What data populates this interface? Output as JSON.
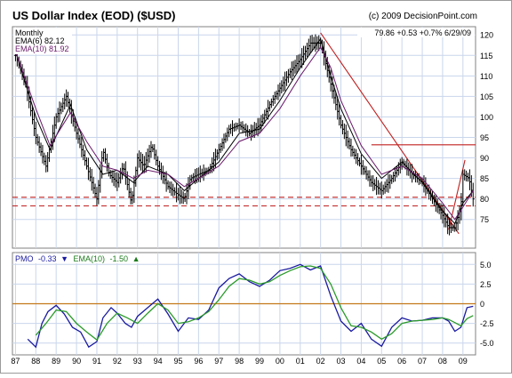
{
  "chart_data": [
    {
      "type": "bar",
      "subtype": "ohlc",
      "title": "US Dollar Index (EOD) ($USD)",
      "copyright": "(c) 2009 DecisionPoint.com",
      "period": "Monthly",
      "quote": "79.86 +0.53 +0.7% 6/29/09",
      "legend": [
        {
          "text": "EMA(6) 82.12",
          "color": "#000000"
        },
        {
          "text": "EMA(10) 81.92",
          "color": "#6a1a6a"
        }
      ],
      "ylim": [
        68,
        122
      ],
      "y_ticks": [
        "75",
        "80",
        "85",
        "90",
        "95",
        "100",
        "105",
        "110",
        "115",
        "120"
      ],
      "x_ticks": [
        "87",
        "88",
        "89",
        "90",
        "91",
        "92",
        "93",
        "94",
        "95",
        "96",
        "97",
        "98",
        "99",
        "00",
        "01",
        "02",
        "03",
        "04",
        "05",
        "06",
        "07",
        "08",
        "09"
      ],
      "x_range": [
        1986.85,
        2009.62
      ],
      "series": [
        {
          "name": "price",
          "x": [
            1987.0,
            1987.5,
            1988.0,
            1988.5,
            1989.0,
            1989.5,
            1990.0,
            1990.5,
            1991.0,
            1991.3,
            1991.6,
            1992.0,
            1992.3,
            1992.7,
            1993.0,
            1993.3,
            1993.7,
            1994.0,
            1994.5,
            1995.0,
            1995.3,
            1995.6,
            1996.0,
            1996.5,
            1997.0,
            1997.5,
            1998.0,
            1998.5,
            1999.0,
            1999.5,
            2000.0,
            2000.5,
            2001.0,
            2001.5,
            2002.0,
            2002.5,
            2003.0,
            2003.5,
            2004.0,
            2004.5,
            2005.0,
            2005.5,
            2006.0,
            2006.5,
            2007.0,
            2007.5,
            2008.0,
            2008.3,
            2008.6,
            2008.9,
            2009.0,
            2009.3,
            2009.5
          ],
          "values": [
            115,
            108,
            95,
            88,
            100,
            105,
            96,
            88,
            80,
            92,
            86,
            84,
            88,
            79,
            90,
            88,
            93,
            88,
            83,
            81,
            80,
            85,
            86,
            87,
            92,
            97,
            98,
            96,
            98,
            103,
            107,
            111,
            114,
            118,
            118,
            108,
            98,
            92,
            88,
            84,
            82,
            85,
            89,
            86,
            84,
            80,
            76,
            73,
            73,
            78,
            86,
            85,
            80
          ]
        },
        {
          "name": "EMA(6)",
          "x": [
            1987.0,
            1988.0,
            1988.7,
            1989.7,
            1990.5,
            1991.3,
            1992.0,
            1992.8,
            1993.5,
            1994.5,
            1995.3,
            1996.0,
            1997.0,
            1998.0,
            1999.0,
            2000.0,
            2001.0,
            2002.0,
            2002.5,
            2003.0,
            2004.0,
            2005.0,
            2006.0,
            2007.0,
            2008.0,
            2008.6,
            2009.0,
            2009.5
          ],
          "values": [
            116,
            100,
            92,
            103,
            92,
            86,
            87,
            84,
            88,
            86,
            82,
            85,
            89,
            96,
            97,
            104,
            112,
            119,
            110,
            102,
            91,
            85,
            89,
            84,
            77,
            74,
            79,
            82
          ]
        },
        {
          "name": "EMA(10)",
          "x": [
            1987.0,
            1988.0,
            1988.7,
            1989.7,
            1990.5,
            1991.3,
            1992.0,
            1992.8,
            1993.5,
            1994.5,
            1995.3,
            1996.0,
            1997.0,
            1998.0,
            1999.0,
            2000.0,
            2001.0,
            2002.0,
            2002.5,
            2003.0,
            2004.0,
            2005.0,
            2006.0,
            2007.0,
            2008.0,
            2008.6,
            2009.0,
            2009.5
          ],
          "values": [
            116,
            102,
            93,
            101,
            94,
            88,
            87,
            85,
            87,
            86,
            83,
            85,
            88,
            94,
            96,
            102,
            110,
            117,
            112,
            104,
            93,
            86,
            88,
            85,
            79,
            75,
            78,
            82
          ]
        }
      ],
      "reference_lines": [
        {
          "kind": "trendline",
          "x": [
            2002.0,
            2008.8
          ],
          "y": [
            120.5,
            71.5
          ],
          "color": "#c02020",
          "style": "solid"
        },
        {
          "kind": "trendline",
          "x": [
            2004.5,
            2009.62
          ],
          "y": [
            93.2,
            93.2
          ],
          "color": "#c02020",
          "style": "solid"
        },
        {
          "kind": "trendline",
          "x": [
            2008.3,
            2009.1
          ],
          "y": [
            72.5,
            89.5
          ],
          "color": "#c02020",
          "style": "solid"
        },
        {
          "kind": "support",
          "x": [
            1986.85,
            2009.62
          ],
          "y": [
            80.4,
            80.4
          ],
          "color": "#c02020",
          "style": "dashed"
        },
        {
          "kind": "support",
          "x": [
            1986.85,
            2009.62
          ],
          "y": [
            78.3,
            78.3
          ],
          "color": "#c02020",
          "style": "dashed"
        }
      ]
    },
    {
      "type": "line",
      "legend_parts": [
        {
          "text": "PMO",
          "color": "#1a1aa0"
        },
        {
          "text": "-0.33",
          "color": "#1a1aa0"
        },
        {
          "text": "▼",
          "color": "#1a1aa0"
        },
        {
          "text": "EMA(10)",
          "color": "#1a7a1a"
        },
        {
          "text": "-1.50",
          "color": "#1a7a1a"
        },
        {
          "text": "▲",
          "color": "#1a7a1a"
        }
      ],
      "ylim": [
        -6.5,
        6.5
      ],
      "y_ticks": [
        "5.0",
        "2.5",
        "0",
        "-2.5",
        "-5.0"
      ],
      "zero_line_color": "#c47a1a",
      "series": [
        {
          "name": "PMO",
          "color": "#1a1aa0",
          "x": [
            1987.6,
            1988.0,
            1988.3,
            1988.6,
            1989.0,
            1989.4,
            1989.8,
            1990.2,
            1990.6,
            1991.0,
            1991.3,
            1991.7,
            1992.0,
            1992.4,
            1992.7,
            1993.0,
            1993.5,
            1994.0,
            1994.5,
            1995.0,
            1995.5,
            1996.0,
            1996.5,
            1997.0,
            1997.5,
            1998.0,
            1998.5,
            1999.0,
            1999.5,
            2000.0,
            2000.5,
            2001.0,
            2001.5,
            2002.0,
            2002.5,
            2003.0,
            2003.5,
            2004.0,
            2004.5,
            2005.0,
            2005.5,
            2006.0,
            2006.5,
            2007.0,
            2007.5,
            2008.0,
            2008.3,
            2008.6,
            2008.9,
            2009.2,
            2009.5
          ],
          "values": [
            -4.5,
            -5.5,
            -2.5,
            -1.0,
            -0.2,
            -1.3,
            -3.0,
            -3.6,
            -5.5,
            -4.8,
            -1.8,
            -0.5,
            -1.2,
            -2.5,
            -3.0,
            -1.6,
            -0.5,
            0.6,
            -1.3,
            -3.5,
            -1.8,
            -2.0,
            -0.8,
            2.0,
            3.2,
            3.8,
            2.8,
            2.2,
            3.0,
            4.2,
            4.5,
            5.0,
            4.3,
            4.8,
            1.0,
            -2.2,
            -3.5,
            -2.5,
            -4.5,
            -5.4,
            -3.0,
            -1.8,
            -2.2,
            -2.1,
            -1.8,
            -1.8,
            -2.2,
            -3.5,
            -3.0,
            -0.5,
            -0.33
          ]
        },
        {
          "name": "EMA(10)",
          "color": "#2a9a2a",
          "x": [
            1988.0,
            1988.5,
            1989.0,
            1989.5,
            1990.0,
            1990.5,
            1991.0,
            1991.5,
            1992.0,
            1992.5,
            1993.0,
            1993.5,
            1994.0,
            1994.5,
            1995.0,
            1995.5,
            1996.0,
            1996.5,
            1997.0,
            1997.5,
            1998.0,
            1998.5,
            1999.0,
            1999.5,
            2000.0,
            2000.5,
            2001.0,
            2001.5,
            2002.0,
            2002.5,
            2003.0,
            2003.5,
            2004.0,
            2004.5,
            2005.0,
            2005.5,
            2006.0,
            2006.5,
            2007.0,
            2007.5,
            2008.0,
            2008.3,
            2008.6,
            2008.9,
            2009.2,
            2009.5
          ],
          "values": [
            -4.0,
            -2.5,
            -0.8,
            -1.0,
            -2.5,
            -3.6,
            -4.6,
            -2.5,
            -1.2,
            -1.8,
            -2.5,
            -1.2,
            0.0,
            -0.8,
            -2.5,
            -2.3,
            -1.8,
            -1.0,
            0.5,
            2.2,
            3.2,
            3.0,
            2.5,
            2.8,
            3.6,
            4.2,
            4.7,
            4.8,
            4.5,
            2.5,
            -0.5,
            -2.8,
            -3.0,
            -3.6,
            -4.5,
            -3.8,
            -2.5,
            -2.2,
            -2.1,
            -2.0,
            -1.8,
            -2.0,
            -2.4,
            -2.8,
            -1.9,
            -1.5
          ]
        }
      ]
    }
  ]
}
